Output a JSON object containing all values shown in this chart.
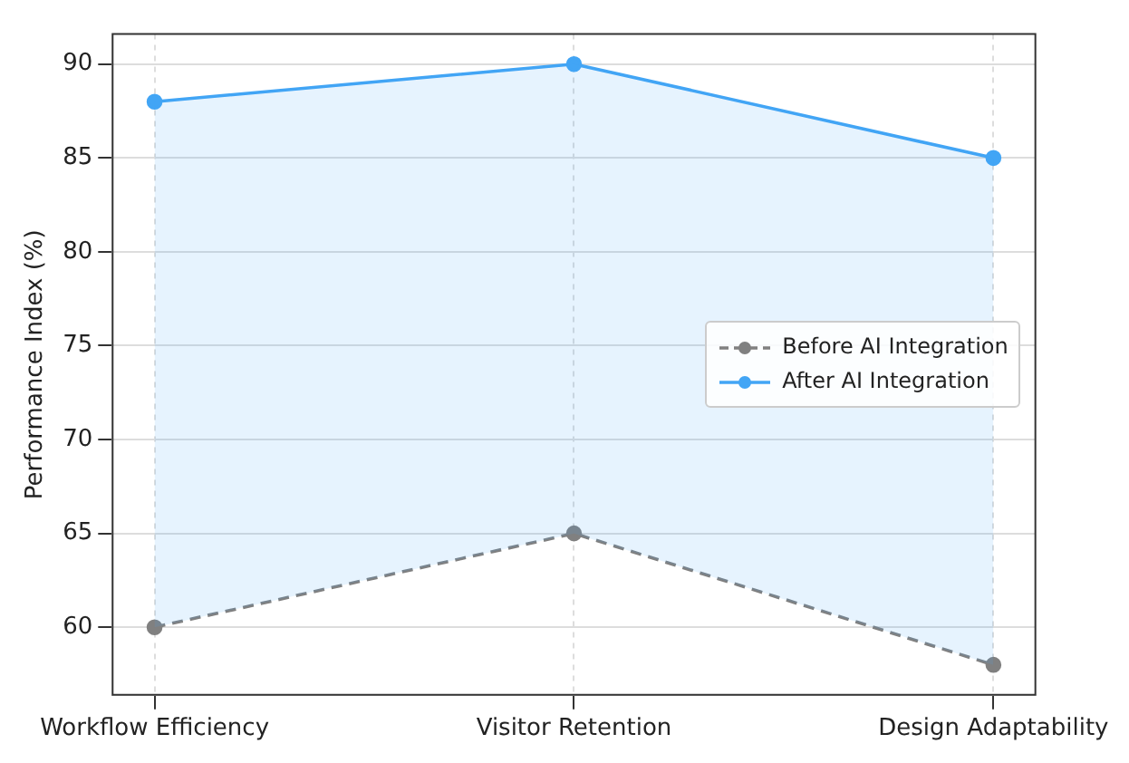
{
  "chart_data": {
    "type": "line",
    "ylabel": "Performance Index (%)",
    "categories": [
      "Workflow Efficiency",
      "Visitor Retention",
      "Design Adaptability"
    ],
    "series": [
      {
        "name": "Before AI Integration",
        "color": "#808080",
        "values": [
          60,
          65,
          58
        ],
        "line_style": "dashed"
      },
      {
        "name": "After AI Integration",
        "color": "#42a5f5",
        "values": [
          88,
          90,
          85
        ],
        "line_style": "solid",
        "lower": [
          60,
          65,
          58
        ],
        "upper": [
          88,
          90,
          85
        ]
      }
    ],
    "ylim": [
      56.4,
      91.6
    ],
    "yticks": [
      60,
      65,
      70,
      75,
      80,
      85,
      90
    ],
    "grid": true,
    "legend": "right",
    "marker": "circle"
  }
}
